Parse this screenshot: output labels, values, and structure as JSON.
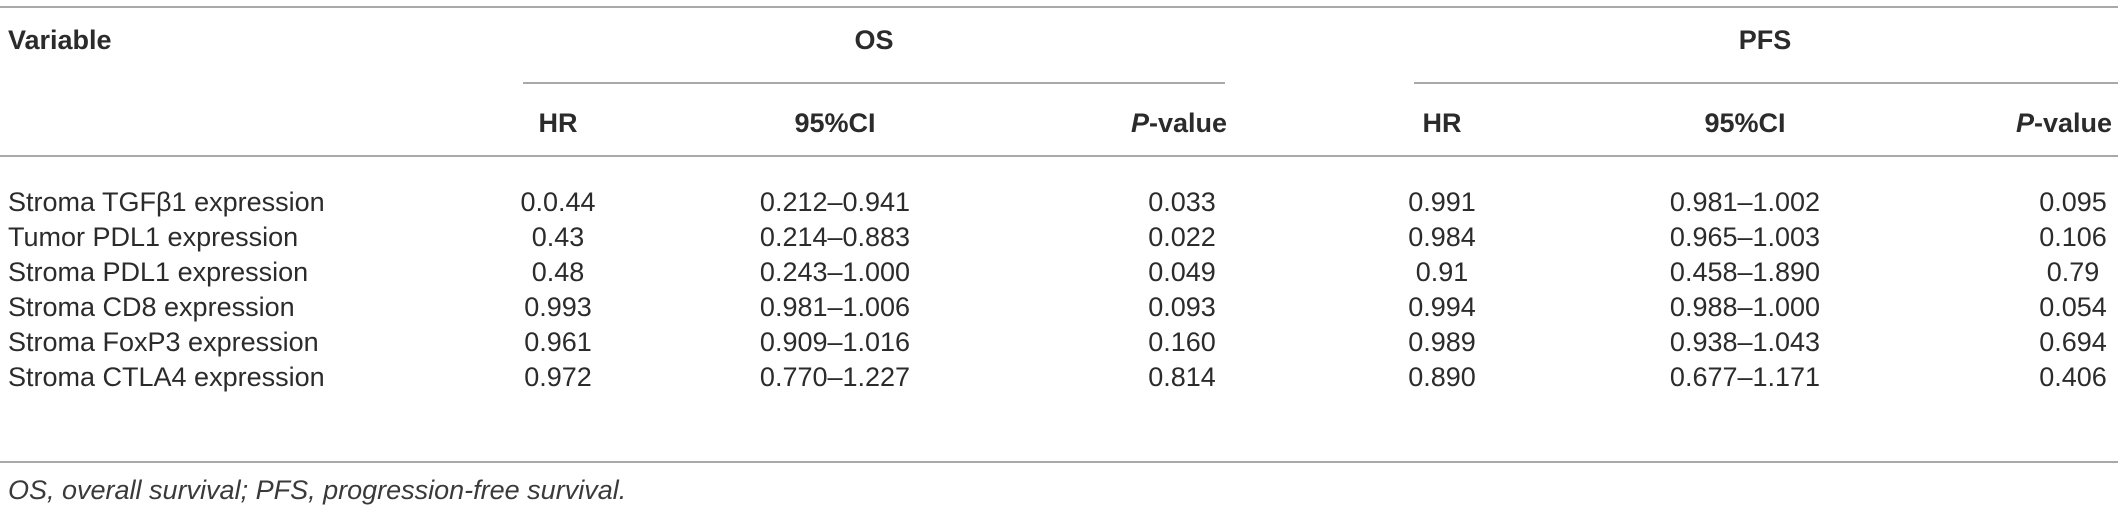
{
  "header": {
    "variable": "Variable",
    "os": "OS",
    "pfs": "PFS",
    "hr": "HR",
    "ci": "95%CI",
    "p_italic": "P",
    "p_rest": "-value"
  },
  "rows": [
    {
      "variable": "Stroma TGFβ1 expression",
      "os_hr": "0.0.44",
      "os_ci": "0.212–0.941",
      "os_p": "0.033",
      "pfs_hr": "0.991",
      "pfs_ci": "0.981–1.002",
      "pfs_p": "0.095"
    },
    {
      "variable": "Tumor PDL1 expression",
      "os_hr": "0.43",
      "os_ci": "0.214–0.883",
      "os_p": "0.022",
      "pfs_hr": "0.984",
      "pfs_ci": "0.965–1.003",
      "pfs_p": "0.106"
    },
    {
      "variable": "Stroma PDL1 expression",
      "os_hr": "0.48",
      "os_ci": "0.243–1.000",
      "os_p": "0.049",
      "pfs_hr": "0.91",
      "pfs_ci": "0.458–1.890",
      "pfs_p": "0.79"
    },
    {
      "variable": "Stroma CD8 expression",
      "os_hr": "0.993",
      "os_ci": "0.981–1.006",
      "os_p": "0.093",
      "pfs_hr": "0.994",
      "pfs_ci": "0.988–1.000",
      "pfs_p": "0.054"
    },
    {
      "variable": "Stroma FoxP3 expression",
      "os_hr": "0.961",
      "os_ci": "0.909–1.016",
      "os_p": "0.160",
      "pfs_hr": "0.989",
      "pfs_ci": "0.938–1.043",
      "pfs_p": "0.694"
    },
    {
      "variable": "Stroma CTLA4 expression",
      "os_hr": "0.972",
      "os_ci": "0.770–1.227",
      "os_p": "0.814",
      "pfs_hr": "0.890",
      "pfs_ci": "0.677–1.171",
      "pfs_p": "0.406"
    }
  ],
  "footnote": "OS, overall survival; PFS, progression-free survival."
}
